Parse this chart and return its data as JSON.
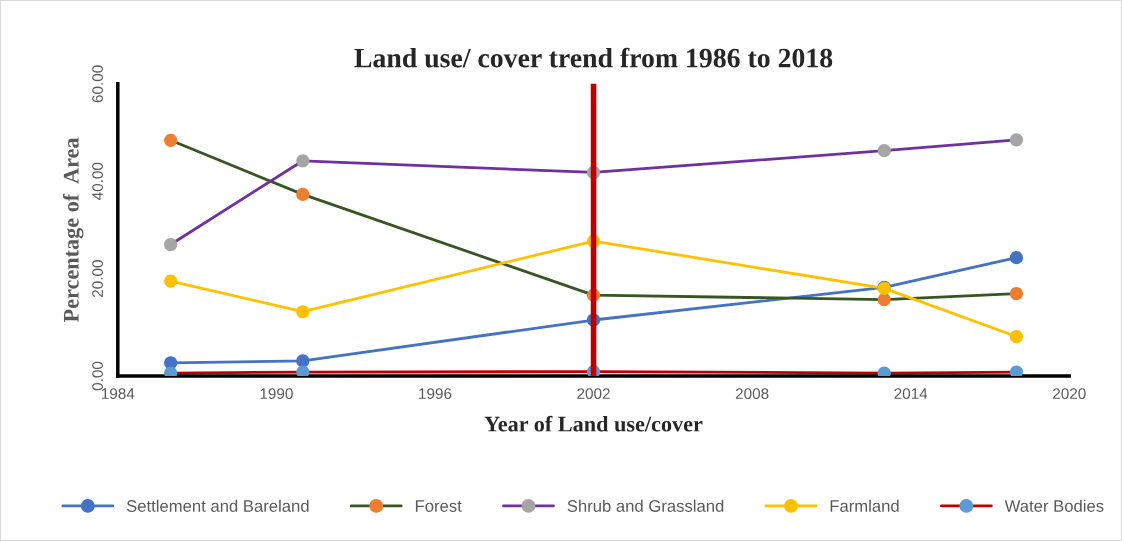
{
  "chart_data": {
    "type": "line",
    "title": "Land use/ cover trend from 1986 to 2018",
    "xlabel": "Year of Land use/cover",
    "ylabel": "Percentage of  Area",
    "x": [
      1986,
      1991,
      2002,
      2013,
      2018
    ],
    "series": [
      {
        "name": "Settlement and Bareland",
        "color": "#4472c4",
        "colors": [
          "#4472c4",
          "#4472c4",
          "#4472c4",
          "#4472c4",
          "#4472c4"
        ],
        "values": [
          2.7,
          3.1,
          11.5,
          18.2,
          24.3
        ]
      },
      {
        "name": "Forest",
        "color": "#375623",
        "colors": [
          "#ed7d31",
          "#ed7d31",
          "#ed7d31",
          "#ed7d31",
          "#ed7d31"
        ],
        "values": [
          48.4,
          37.3,
          16.6,
          15.7,
          16.9
        ]
      },
      {
        "name": "Shrub and Grassland",
        "color": "#7030a0",
        "colors": [
          "#a5a5a5",
          "#a5a5a5",
          "#a5a5a5",
          "#a5a5a5",
          "#a5a5a5"
        ],
        "values": [
          27.0,
          44.2,
          41.8,
          46.3,
          48.5
        ]
      },
      {
        "name": "Farmland",
        "color": "#ffc000",
        "colors": [
          "#ffc000",
          "#ffc000",
          "#ffc000",
          "#ffc000",
          "#ffc000"
        ],
        "values": [
          19.5,
          13.2,
          27.7,
          18.0,
          8.1
        ]
      },
      {
        "name": "Water Bodies",
        "color": "#c00000",
        "colors": [
          "#5b9bd5",
          "#5b9bd5",
          "#5b9bd5",
          "#5b9bd5",
          "#5b9bd5"
        ],
        "values": [
          0.6,
          0.8,
          0.9,
          0.6,
          0.8
        ]
      }
    ],
    "xlim": [
      1984,
      2020
    ],
    "xticks": [
      1984,
      1990,
      1996,
      2002,
      2008,
      2014,
      2020
    ],
    "ylim": [
      0,
      60
    ],
    "yticks": [
      {
        "value": 0,
        "label": "0.00"
      },
      {
        "value": 20,
        "label": "20.00"
      },
      {
        "value": 40,
        "label": "40.00"
      },
      {
        "value": 60,
        "label": "60.00"
      }
    ],
    "ref_lines": [
      {
        "axis": "x",
        "value": 2002,
        "color": "#c00000",
        "line_style": "solid"
      }
    ],
    "grid": false,
    "legend": "bottom",
    "marker": "circle",
    "line_style": "solid"
  }
}
